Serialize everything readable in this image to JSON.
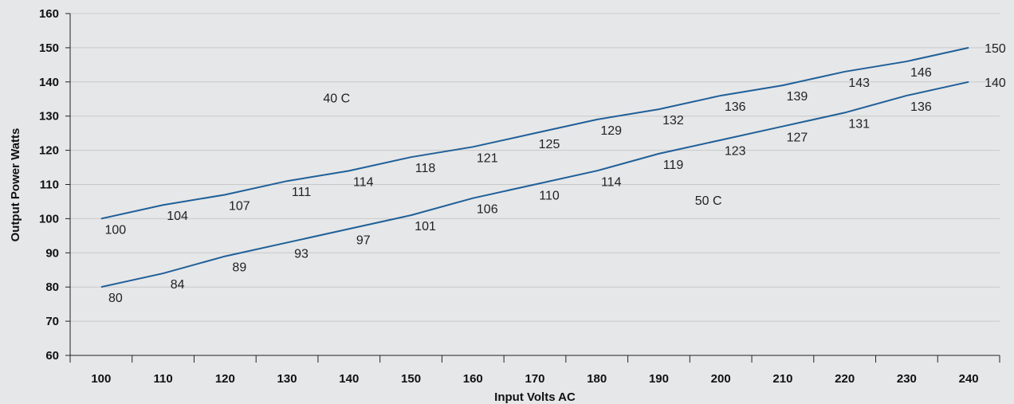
{
  "chart_data": {
    "type": "line",
    "xlabel": "Input Volts AC",
    "ylabel": "Output Power Watts",
    "xlim": [
      95,
      245
    ],
    "ylim": [
      60,
      160
    ],
    "xticks": [
      100,
      110,
      120,
      130,
      140,
      150,
      160,
      170,
      180,
      190,
      200,
      210,
      220,
      230,
      240
    ],
    "yticks": [
      60,
      70,
      80,
      90,
      100,
      110,
      120,
      130,
      140,
      150,
      160
    ],
    "grid": true,
    "x": [
      100,
      110,
      120,
      130,
      140,
      150,
      160,
      170,
      180,
      190,
      200,
      210,
      220,
      230,
      240
    ],
    "series": [
      {
        "values": [
          100,
          104,
          107,
          111,
          114,
          118,
          121,
          125,
          129,
          132,
          136,
          139,
          143,
          146,
          150
        ],
        "color": "#1f5f99"
      },
      {
        "values": [
          80,
          84,
          89,
          93,
          97,
          101,
          106,
          110,
          114,
          119,
          123,
          127,
          131,
          136,
          140
        ],
        "color": "#1f5f99"
      }
    ],
    "annotations": [
      {
        "text": "40 C",
        "x": 138,
        "y": 134
      },
      {
        "text": "50 C",
        "x": 198,
        "y": 104
      }
    ]
  }
}
